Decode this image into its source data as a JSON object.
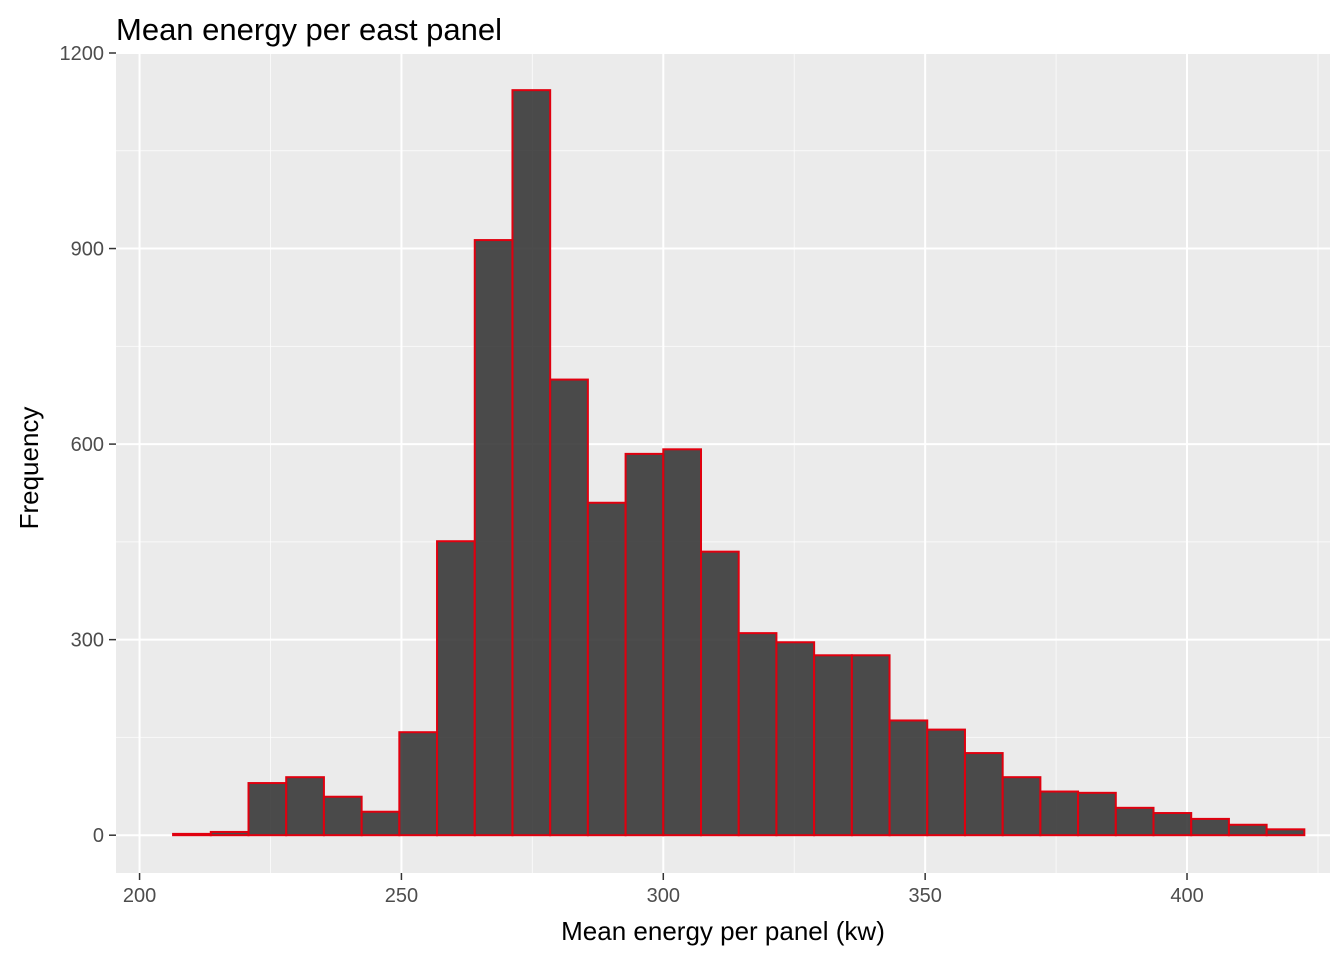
{
  "chart_data": {
    "type": "bar",
    "title": "Mean energy per east panel",
    "xlabel": "Mean energy per panel (kw)",
    "ylabel": "Frequency",
    "xlim": [
      195.5,
      427.3
    ],
    "ylim": [
      -58,
      1200
    ],
    "x_ticks": [
      "200",
      "250",
      "300",
      "350",
      "400"
    ],
    "x_tick_values": [
      200,
      250,
      300,
      350,
      400
    ],
    "y_ticks": [
      "0",
      "300",
      "600",
      "900",
      "1200"
    ],
    "y_tick_values": [
      0,
      300,
      600,
      900,
      1200
    ],
    "bin_width": 7.2,
    "bins": [
      {
        "x0": 206.4,
        "x1": 213.6,
        "count": 2
      },
      {
        "x0": 213.6,
        "x1": 220.8,
        "count": 5
      },
      {
        "x0": 220.8,
        "x1": 228.0,
        "count": 80
      },
      {
        "x0": 228.0,
        "x1": 235.2,
        "count": 89
      },
      {
        "x0": 235.2,
        "x1": 242.4,
        "count": 59
      },
      {
        "x0": 242.4,
        "x1": 249.6,
        "count": 36
      },
      {
        "x0": 249.6,
        "x1": 256.8,
        "count": 158
      },
      {
        "x0": 256.8,
        "x1": 264.0,
        "count": 451
      },
      {
        "x0": 264.0,
        "x1": 271.2,
        "count": 913
      },
      {
        "x0": 271.2,
        "x1": 278.4,
        "count": 1143
      },
      {
        "x0": 278.4,
        "x1": 285.6,
        "count": 699
      },
      {
        "x0": 285.6,
        "x1": 292.8,
        "count": 510
      },
      {
        "x0": 292.8,
        "x1": 300.0,
        "count": 585
      },
      {
        "x0": 300.0,
        "x1": 307.2,
        "count": 592
      },
      {
        "x0": 307.2,
        "x1": 314.4,
        "count": 435
      },
      {
        "x0": 314.4,
        "x1": 321.6,
        "count": 310
      },
      {
        "x0": 321.6,
        "x1": 328.8,
        "count": 296
      },
      {
        "x0": 328.8,
        "x1": 336.0,
        "count": 276
      },
      {
        "x0": 336.0,
        "x1": 343.2,
        "count": 276
      },
      {
        "x0": 343.2,
        "x1": 350.4,
        "count": 176
      },
      {
        "x0": 350.4,
        "x1": 357.6,
        "count": 162
      },
      {
        "x0": 357.6,
        "x1": 364.8,
        "count": 126
      },
      {
        "x0": 364.8,
        "x1": 372.0,
        "count": 89
      },
      {
        "x0": 372.0,
        "x1": 379.2,
        "count": 67
      },
      {
        "x0": 379.2,
        "x1": 386.4,
        "count": 65
      },
      {
        "x0": 386.4,
        "x1": 393.6,
        "count": 42
      },
      {
        "x0": 393.6,
        "x1": 400.8,
        "count": 34
      },
      {
        "x0": 400.8,
        "x1": 408.0,
        "count": 25
      },
      {
        "x0": 408.0,
        "x1": 415.2,
        "count": 16
      },
      {
        "x0": 415.2,
        "x1": 422.4,
        "count": 9
      }
    ],
    "grid": true,
    "colors": {
      "panel_background": "#ebebeb",
      "grid_major": "#ffffff",
      "bar_fill": "#333333",
      "bar_fill_opacity": 0.88,
      "bar_outline": "#e0000f",
      "tick_mark": "#333333"
    }
  }
}
